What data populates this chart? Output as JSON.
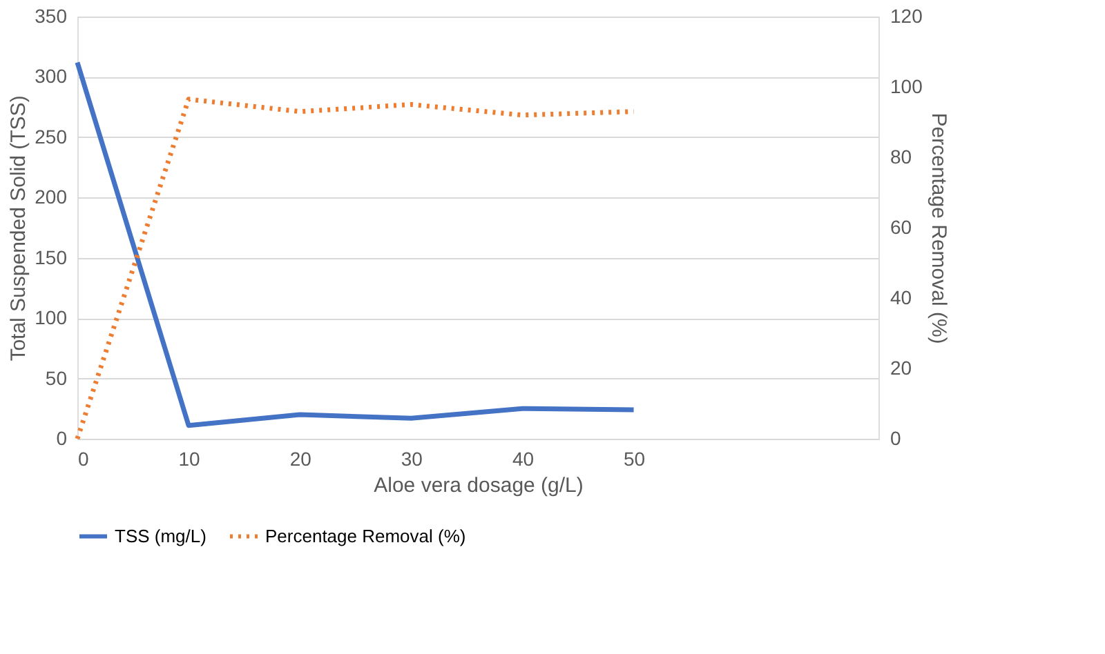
{
  "chart_data": {
    "type": "line",
    "xlabel": "Aloe vera dosage (g/L)",
    "ylabel": "Total Suspended Solid (TSS)",
    "y2label": "Percentage Removal (%)",
    "x": [
      0,
      10,
      20,
      30,
      40,
      50
    ],
    "xlim": [
      0,
      72
    ],
    "xticks": [
      0,
      10,
      20,
      30,
      40,
      50
    ],
    "ylim": [
      0,
      350
    ],
    "yticks": [
      0,
      50,
      100,
      150,
      200,
      250,
      300,
      350
    ],
    "y2lim": [
      0,
      120
    ],
    "y2ticks": [
      0,
      20,
      40,
      60,
      80,
      100,
      120
    ],
    "grid": "y",
    "legend": "bottom",
    "series": [
      {
        "name": "TSS (mg/L)",
        "color": "#4472c4",
        "line_style": "solid",
        "values": [
          312,
          11,
          20,
          17,
          25,
          24
        ]
      },
      {
        "name": "Percentage Removal (%)",
        "color": "#ed7d31",
        "line_style": "dotted",
        "axis": "y2",
        "values": [
          0,
          96.5,
          93,
          95,
          92,
          93
        ]
      }
    ]
  }
}
